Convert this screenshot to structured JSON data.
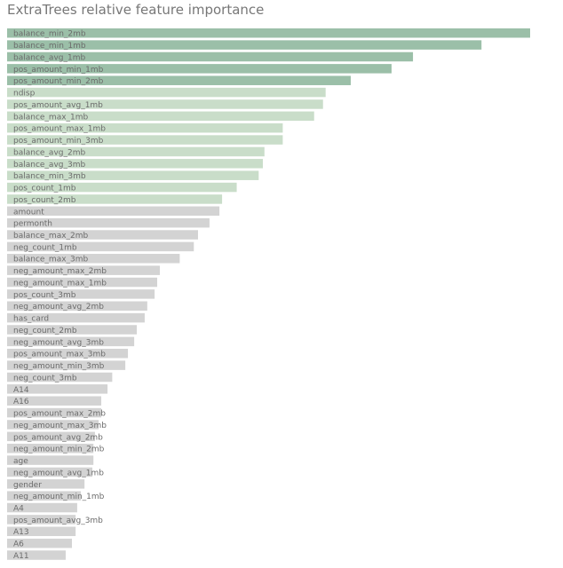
{
  "chart_data": {
    "type": "bar",
    "orientation": "horizontal",
    "title": "ExtraTrees relative feature importance",
    "xlabel": "",
    "ylabel": "",
    "xlim": [
      0,
      1
    ],
    "grid": false,
    "colors": {
      "top": "#9bbfa8",
      "mid": "#c9ddc9",
      "rest": "#d3d3d3",
      "label": "#6b6b6b",
      "title": "#777777"
    },
    "categories": [
      "balance_min_2mb",
      "balance_min_1mb",
      "balance_avg_1mb",
      "pos_amount_min_1mb",
      "pos_amount_min_2mb",
      "ndisp",
      "pos_amount_avg_1mb",
      "balance_max_1mb",
      "pos_amount_max_1mb",
      "pos_amount_min_3mb",
      "balance_avg_2mb",
      "balance_avg_3mb",
      "balance_min_3mb",
      "pos_count_1mb",
      "pos_count_2mb",
      "amount",
      "permonth",
      "balance_max_2mb",
      "neg_count_1mb",
      "balance_max_3mb",
      "neg_amount_max_2mb",
      "neg_amount_max_1mb",
      "pos_count_3mb",
      "neg_amount_avg_2mb",
      "has_card",
      "neg_count_2mb",
      "neg_amount_avg_3mb",
      "pos_amount_max_3mb",
      "neg_amount_min_3mb",
      "neg_count_3mb",
      "A14",
      "A16",
      "pos_amount_max_2mb",
      "neg_amount_max_3mb",
      "pos_amount_avg_2mb",
      "neg_amount_min_2mb",
      "age",
      "neg_amount_avg_1mb",
      "gender",
      "neg_amount_min_1mb",
      "A4",
      "pos_amount_avg_3mb",
      "A13",
      "A6",
      "A11"
    ],
    "values": [
      1.0,
      0.907,
      0.776,
      0.735,
      0.657,
      0.609,
      0.604,
      0.587,
      0.527,
      0.527,
      0.492,
      0.489,
      0.481,
      0.439,
      0.411,
      0.406,
      0.387,
      0.365,
      0.357,
      0.33,
      0.292,
      0.287,
      0.282,
      0.268,
      0.263,
      0.248,
      0.243,
      0.231,
      0.226,
      0.201,
      0.192,
      0.18,
      0.18,
      0.175,
      0.168,
      0.165,
      0.165,
      0.163,
      0.148,
      0.141,
      0.134,
      0.131,
      0.131,
      0.124,
      0.112
    ],
    "color_groups": [
      "top",
      "top",
      "top",
      "top",
      "top",
      "mid",
      "mid",
      "mid",
      "mid",
      "mid",
      "mid",
      "mid",
      "mid",
      "mid",
      "mid",
      "rest",
      "rest",
      "rest",
      "rest",
      "rest",
      "rest",
      "rest",
      "rest",
      "rest",
      "rest",
      "rest",
      "rest",
      "rest",
      "rest",
      "rest",
      "rest",
      "rest",
      "rest",
      "rest",
      "rest",
      "rest",
      "rest",
      "rest",
      "rest",
      "rest",
      "rest",
      "rest",
      "rest",
      "rest",
      "rest"
    ]
  }
}
